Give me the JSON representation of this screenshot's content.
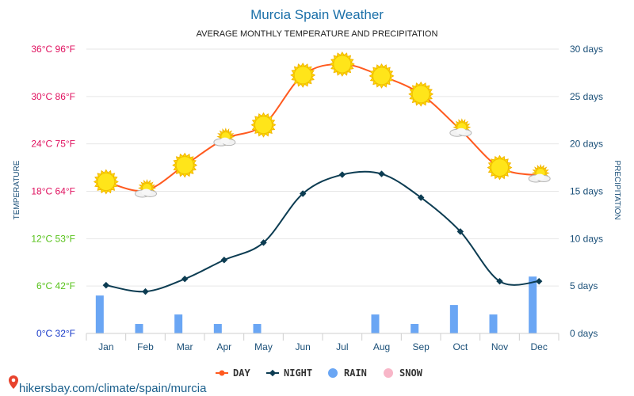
{
  "chart_data": {
    "type": "line",
    "title": "Murcia Spain Weather",
    "subtitle": "AVERAGE MONTHLY TEMPERATURE AND PRECIPITATION",
    "categories": [
      "Jan",
      "Feb",
      "Mar",
      "Apr",
      "May",
      "Jun",
      "Jul",
      "Aug",
      "Sep",
      "Oct",
      "Nov",
      "Dec"
    ],
    "series": [
      {
        "name": "DAY",
        "kind": "line",
        "axis": "temperature",
        "color": "#ff5a1f",
        "values": [
          19.2,
          18.1,
          21.3,
          24.6,
          26.4,
          32.7,
          34.1,
          32.6,
          30.3,
          25.8,
          21.0,
          20.0
        ],
        "icons": [
          "sun",
          "partly-cloudy",
          "sun",
          "partly-cloudy",
          "sun",
          "sun",
          "sun",
          "sun",
          "sun",
          "partly-cloudy",
          "sun",
          "partly-cloudy"
        ]
      },
      {
        "name": "NIGHT",
        "kind": "line",
        "axis": "temperature",
        "color": "#0c3c52",
        "values": [
          6.1,
          5.3,
          6.9,
          9.3,
          11.5,
          17.7,
          20.1,
          20.2,
          17.2,
          12.9,
          6.6,
          6.6
        ]
      },
      {
        "name": "RAIN",
        "kind": "bar",
        "axis": "precipitation",
        "color": "#6aa6f4",
        "unit": "days",
        "values": [
          4,
          1,
          2,
          1,
          1,
          0,
          0,
          2,
          1,
          3,
          2,
          6
        ]
      },
      {
        "name": "SNOW",
        "kind": "bar",
        "axis": "precipitation",
        "color": "#f8b6c8",
        "unit": "days",
        "values": [
          0,
          0,
          0,
          0,
          0,
          0,
          0,
          0,
          0,
          0,
          0,
          0
        ]
      }
    ],
    "y_left": {
      "label": "TEMPERATURE",
      "range": [
        0,
        36
      ],
      "ticks": [
        {
          "value": 36,
          "label": "36°C 96°F",
          "color": "#e0115f"
        },
        {
          "value": 30,
          "label": "30°C 86°F",
          "color": "#e0115f"
        },
        {
          "value": 24,
          "label": "24°C 75°F",
          "color": "#e0115f"
        },
        {
          "value": 18,
          "label": "18°C 64°F",
          "color": "#e0115f"
        },
        {
          "value": 12,
          "label": "12°C 53°F",
          "color": "#57c21a"
        },
        {
          "value": 6,
          "label": "6°C 42°F",
          "color": "#57c21a"
        },
        {
          "value": 0,
          "label": "0°C 32°F",
          "color": "#1537c8"
        }
      ]
    },
    "y_right": {
      "label": "PRECIPITATION",
      "range": [
        0,
        30
      ],
      "ticks": [
        {
          "value": 30,
          "label": "30 days"
        },
        {
          "value": 25,
          "label": "25 days"
        },
        {
          "value": 20,
          "label": "20 days"
        },
        {
          "value": 15,
          "label": "15 days"
        },
        {
          "value": 10,
          "label": "10 days"
        },
        {
          "value": 5,
          "label": "5 days"
        },
        {
          "value": 0,
          "label": "0 days"
        }
      ]
    },
    "grid": true,
    "legend": {
      "position": "bottom-center",
      "items": [
        {
          "label": "DAY",
          "color": "#ff5a1f",
          "marker": "line-dot"
        },
        {
          "label": "NIGHT",
          "color": "#0c3c52",
          "marker": "line-diamond"
        },
        {
          "label": "RAIN",
          "color": "#6aa6f4",
          "marker": "circle"
        },
        {
          "label": "SNOW",
          "color": "#f8b6c8",
          "marker": "circle"
        }
      ]
    }
  },
  "source_text": "hikersbay.com/climate/spain/murcia",
  "colors": {
    "title": "#1a6fa8",
    "grid": "#e6e6e6",
    "axis_text": "#1a4f78"
  }
}
